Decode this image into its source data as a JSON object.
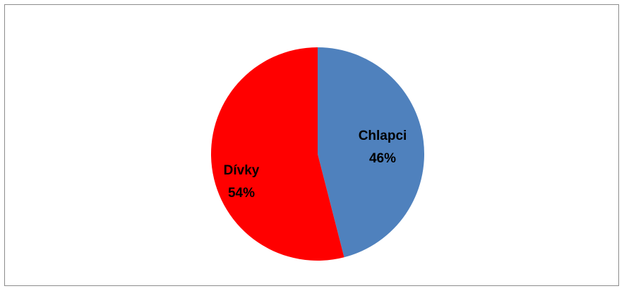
{
  "chart_data": {
    "type": "pie",
    "title": "",
    "categories": [
      "Chlapci",
      "Dívky"
    ],
    "values": [
      46,
      54
    ],
    "value_labels": [
      "46%",
      "54%"
    ],
    "colors": [
      "#4f81bd",
      "#ff0000"
    ],
    "start_angle": "12 o'clock, clockwise",
    "legend": "none",
    "data_labels": "inside"
  }
}
